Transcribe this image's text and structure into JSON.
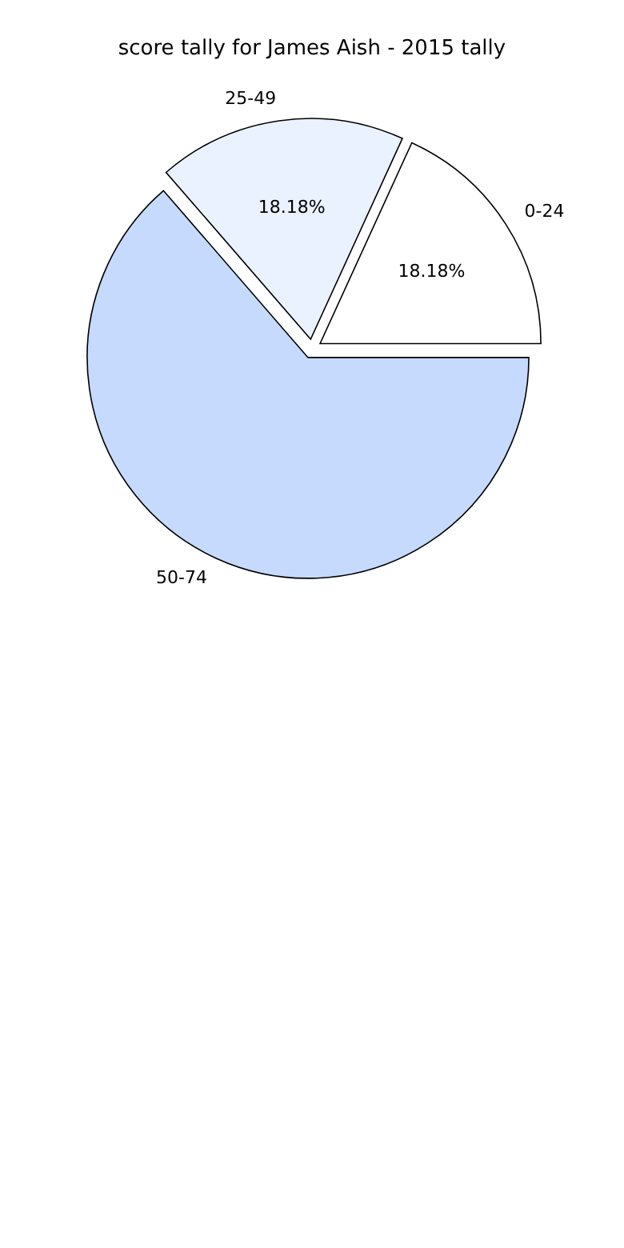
{
  "chart_data": {
    "type": "pie",
    "title": "score tally for James Aish - 2015 tally",
    "categories": [
      "0-24",
      "25-49",
      "50-74"
    ],
    "values": [
      18.18,
      18.18,
      63.64
    ],
    "colors": [
      "#ffffff",
      "#eaf2ff",
      "#c6dafe"
    ],
    "value_labels": [
      "18.18%",
      "18.18%",
      null
    ],
    "legend": false
  }
}
